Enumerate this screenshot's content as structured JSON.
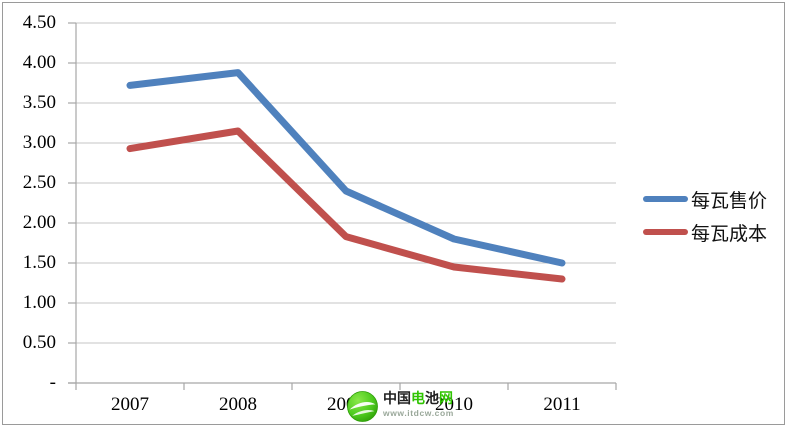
{
  "chart_data": {
    "type": "line",
    "title": "",
    "xlabel": "",
    "ylabel": "",
    "categories": [
      "2007",
      "2008",
      "2009",
      "2010",
      "2011"
    ],
    "series": [
      {
        "name": "每瓦售价",
        "color": "#4F81BD",
        "values": [
          3.72,
          3.88,
          2.4,
          1.8,
          1.5
        ]
      },
      {
        "name": "每瓦成本",
        "color": "#C0504D",
        "values": [
          2.93,
          3.15,
          1.83,
          1.45,
          1.3
        ]
      }
    ],
    "ylim": [
      0,
      4.5
    ],
    "ytick_step": 0.5,
    "ytick_labels_top_down": [
      "4.50",
      "4.00",
      "3.50",
      "3.00",
      "2.50",
      "2.00",
      "1.50",
      "1.00",
      "0.50",
      "-"
    ],
    "grid": true,
    "legend_position": "right",
    "gridline_color": "#C6C6C6",
    "axis_color": "#A6A6A6",
    "text_color": "#000000"
  },
  "watermark": {
    "brand_chars": [
      {
        "ch": "中",
        "color": "#1f1f1f"
      },
      {
        "ch": "国",
        "color": "#1f1f1f"
      },
      {
        "ch": "电",
        "color": "#2fc400"
      },
      {
        "ch": "池",
        "color": "#1f1f1f"
      },
      {
        "ch": "网",
        "color": "#2fc400"
      }
    ],
    "url": "www.itdcw.com",
    "url_color": "#9aa89a",
    "logo_green": "#4ecb1f",
    "logo_dark_green": "#2e9e07"
  }
}
